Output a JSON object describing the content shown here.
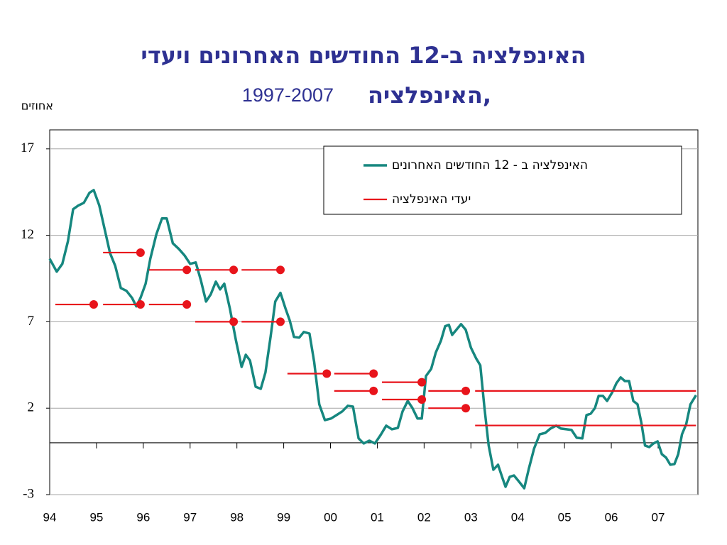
{
  "chart_data": {
    "type": "line",
    "title": "האינפלציה ב-12 החודשים האחרונים ויעדי",
    "subtitle": [
      "האינפלציה,",
      "1997-2007"
    ],
    "y_axis_label": "אחוזים",
    "xlim": [
      1994,
      2007.85
    ],
    "ylim": [
      -3,
      18.1
    ],
    "yticks": [
      -3,
      2,
      7,
      12,
      17
    ],
    "xticks": [
      {
        "value": 1994,
        "label": "94"
      },
      {
        "value": 1995,
        "label": "95"
      },
      {
        "value": 1996,
        "label": "96"
      },
      {
        "value": 1997,
        "label": "97"
      },
      {
        "value": 1998,
        "label": "98"
      },
      {
        "value": 1999,
        "label": "99"
      },
      {
        "value": 2000,
        "label": "00"
      },
      {
        "value": 2001,
        "label": "01"
      },
      {
        "value": 2002,
        "label": "02"
      },
      {
        "value": 2003,
        "label": "03"
      },
      {
        "value": 2004,
        "label": "04"
      },
      {
        "value": 2005,
        "label": "05"
      },
      {
        "value": 2006,
        "label": "06"
      },
      {
        "value": 2007,
        "label": "07"
      }
    ],
    "grid": true,
    "legend": "upper right",
    "series": [
      {
        "name": "האינפלציה ב - 12 החודשים האחרונים",
        "color": "#16877f",
        "x": [
          1994.0,
          1994.15,
          1994.27,
          1994.39,
          1994.5,
          1994.61,
          1994.73,
          1994.85,
          1994.94,
          1995.06,
          1995.18,
          1995.29,
          1995.4,
          1995.52,
          1995.64,
          1995.76,
          1995.85,
          1995.94,
          1996.05,
          1996.15,
          1996.28,
          1996.4,
          1996.5,
          1996.63,
          1996.76,
          1996.88,
          1997.0,
          1997.12,
          1997.23,
          1997.34,
          1997.44,
          1997.55,
          1997.64,
          1997.73,
          1997.85,
          1997.98,
          1998.1,
          1998.19,
          1998.28,
          1998.4,
          1998.51,
          1998.61,
          1998.72,
          1998.82,
          1998.93,
          1999.04,
          1999.13,
          1999.22,
          1999.33,
          1999.43,
          1999.55,
          1999.65,
          1999.76,
          1999.88,
          2000.01,
          2000.13,
          2000.25,
          2000.37,
          2000.48,
          2000.6,
          2000.71,
          2000.83,
          2000.95,
          2001.07,
          2001.19,
          2001.31,
          2001.44,
          2001.54,
          2001.65,
          2001.75,
          2001.86,
          2001.95,
          2002.04,
          2002.15,
          2002.25,
          2002.36,
          2002.45,
          2002.53,
          2002.6,
          2002.69,
          2002.79,
          2002.89,
          2003.0,
          2003.11,
          2003.2,
          2003.29,
          2003.38,
          2003.48,
          2003.58,
          2003.67,
          2003.74,
          2003.83,
          2003.92,
          2004.02,
          2004.14,
          2004.24,
          2004.35,
          2004.47,
          2004.59,
          2004.7,
          2004.82,
          2004.92,
          2005.04,
          2005.15,
          2005.26,
          2005.38,
          2005.47,
          2005.56,
          2005.65,
          2005.73,
          2005.82,
          2005.91,
          2006.02,
          2006.11,
          2006.2,
          2006.29,
          2006.38,
          2006.47,
          2006.56,
          2006.64,
          2006.72,
          2006.81,
          2006.9,
          2006.99,
          2007.08,
          2007.17,
          2007.26,
          2007.35,
          2007.43,
          2007.51,
          2007.6,
          2007.69,
          2007.81
        ],
        "values": [
          10.64,
          9.9,
          10.35,
          11.66,
          13.51,
          13.72,
          13.88,
          14.46,
          14.62,
          13.72,
          12.28,
          10.97,
          10.23,
          8.95,
          8.79,
          8.38,
          7.89,
          8.38,
          9.2,
          10.64,
          12.07,
          12.98,
          12.98,
          11.54,
          11.21,
          10.84,
          10.35,
          10.43,
          9.4,
          8.17,
          8.58,
          9.32,
          8.87,
          9.2,
          7.76,
          5.91,
          4.39,
          5.09,
          4.76,
          3.24,
          3.12,
          4.07,
          6.12,
          8.17,
          8.67,
          7.76,
          7.06,
          6.12,
          6.08,
          6.41,
          6.32,
          4.68,
          2.22,
          1.31,
          1.4,
          1.6,
          1.81,
          2.14,
          2.09,
          0.25,
          -0.04,
          0.12,
          -0.04,
          0.45,
          0.99,
          0.78,
          0.86,
          1.81,
          2.42,
          2.01,
          1.4,
          1.4,
          3.86,
          4.27,
          5.22,
          5.91,
          6.74,
          6.82,
          6.24,
          6.53,
          6.86,
          6.53,
          5.5,
          4.89,
          4.48,
          2.01,
          -0.16,
          -1.56,
          -1.27,
          -2.01,
          -2.55,
          -1.97,
          -1.89,
          -2.22,
          -2.63,
          -1.48,
          -0.33,
          0.49,
          0.57,
          0.82,
          0.99,
          0.82,
          0.78,
          0.74,
          0.29,
          0.25,
          1.6,
          1.68,
          2.01,
          2.71,
          2.71,
          2.42,
          2.92,
          3.45,
          3.78,
          3.57,
          3.57,
          2.42,
          2.22,
          1.19,
          -0.16,
          -0.25,
          -0.04,
          0.08,
          -0.66,
          -0.86,
          -1.27,
          -1.23,
          -0.66,
          0.49,
          1.07,
          2.22,
          2.75
        ]
      },
      {
        "name": "יעדי האינפלציה",
        "color": "#e8141b",
        "segments": [
          {
            "x": [
              1994.12,
              1994.94
            ],
            "value": 8,
            "dot": true
          },
          {
            "x": [
              1995.14,
              1995.94
            ],
            "value": 11,
            "dot": true
          },
          {
            "x": [
              1995.14,
              1995.94
            ],
            "value": 8,
            "dot": true
          },
          {
            "x": [
              1996.12,
              1996.93
            ],
            "value": 10,
            "dot": true
          },
          {
            "x": [
              1996.12,
              1996.93
            ],
            "value": 8,
            "dot": true
          },
          {
            "x": [
              1997.11,
              1997.93
            ],
            "value": 10,
            "dot": true
          },
          {
            "x": [
              1997.11,
              1997.93
            ],
            "value": 7,
            "dot": true
          },
          {
            "x": [
              1998.1,
              1998.93
            ],
            "value": 10,
            "dot": true
          },
          {
            "x": [
              1998.1,
              1998.93
            ],
            "value": 7,
            "dot": true
          },
          {
            "x": [
              1999.08,
              1999.92
            ],
            "value": 4,
            "dot": true
          },
          {
            "x": [
              2000.08,
              2000.92
            ],
            "value": 4,
            "dot": true
          },
          {
            "x": [
              2000.08,
              2000.92
            ],
            "value": 3,
            "dot": true
          },
          {
            "x": [
              2001.1,
              2001.95
            ],
            "value": 3.5,
            "dot": true
          },
          {
            "x": [
              2001.1,
              2001.95
            ],
            "value": 2.5,
            "dot": true
          },
          {
            "x": [
              2002.09,
              2002.89
            ],
            "value": 3,
            "dot": true
          },
          {
            "x": [
              2002.09,
              2002.89
            ],
            "value": 2,
            "dot": true
          },
          {
            "x": [
              2003.09,
              2007.81
            ],
            "value": 3,
            "dot": false
          },
          {
            "x": [
              2003.09,
              2007.81
            ],
            "value": 1,
            "dot": false
          }
        ]
      }
    ]
  }
}
